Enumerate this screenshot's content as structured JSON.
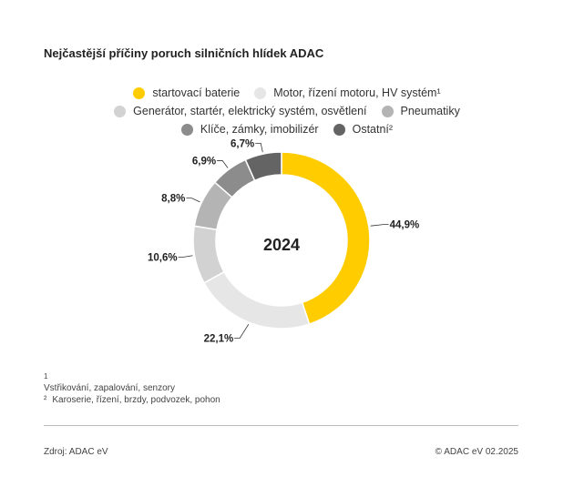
{
  "title": "Nejčastější příčiny poruch silničních hlídek ADAC",
  "legend_rows": [
    [
      {
        "label": "startovací baterie",
        "color": "#ffcc00"
      },
      {
        "label": "Motor, řízení motoru, HV systém¹",
        "color": "#e6e6e6"
      }
    ],
    [
      {
        "label": "Generátor, startér, elektrický systém, osvětlení",
        "color": "#d2d2d2"
      },
      {
        "label": "Pneumatiky",
        "color": "#b4b4b4"
      }
    ],
    [
      {
        "label": "Klíče, zámky, imobilizér",
        "color": "#8c8c8c"
      },
      {
        "label": "Ostatní²",
        "color": "#646464"
      }
    ]
  ],
  "chart_data": {
    "type": "pie",
    "donut": true,
    "center_label": "2024",
    "title": "Nejčastější příčiny poruch silničních hlídek ADAC",
    "categories": [
      "startovací baterie",
      "Motor, řízení motoru, HV systém¹",
      "Generátor, startér, elektrický systém, osvětlení",
      "Pneumatiky",
      "Klíče, zámky, imobilizér",
      "Ostatní²"
    ],
    "values": [
      44.9,
      22.1,
      10.6,
      8.8,
      6.9,
      6.7
    ],
    "value_labels": [
      "44,9%",
      "22,1%",
      "10,6%",
      "8,8%",
      "6,9%",
      "6,7%"
    ],
    "colors": [
      "#ffcc00",
      "#e6e6e6",
      "#d2d2d2",
      "#b4b4b4",
      "#8c8c8c",
      "#646464"
    ],
    "start_angle_deg": 0,
    "direction": "clockwise"
  },
  "footnotes": [
    {
      "mark": "1",
      "text": "Vstřikování, zapalování, senzory"
    },
    {
      "mark": "²",
      "text": "Karoserie, řízení, brzdy, podvozek, pohon"
    }
  ],
  "source": "Zdroj: ADAC eV",
  "copyright": "© ADAC eV 02.2025"
}
